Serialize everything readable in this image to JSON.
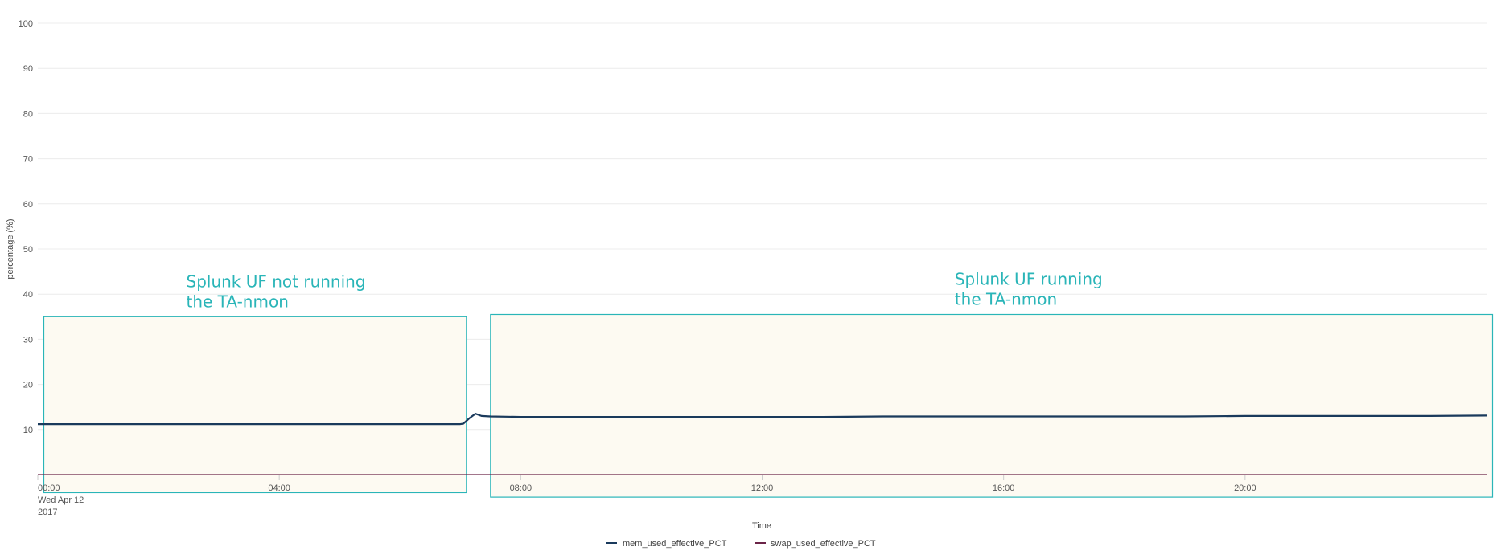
{
  "chart_data": {
    "type": "line",
    "title": "",
    "xlabel": "Time",
    "ylabel": "percentage (%)",
    "ylim": [
      0,
      100
    ],
    "y_ticks": [
      10,
      20,
      30,
      40,
      50,
      60,
      70,
      80,
      90,
      100
    ],
    "xlim_hours": [
      0,
      24
    ],
    "x_ticks": [
      {
        "hour": 0,
        "label": "00:00"
      },
      {
        "hour": 4,
        "label": "04:00"
      },
      {
        "hour": 8,
        "label": "08:00"
      },
      {
        "hour": 12,
        "label": "12:00"
      },
      {
        "hour": 16,
        "label": "16:00"
      },
      {
        "hour": 20,
        "label": "20:00"
      }
    ],
    "x_date_label": [
      "Wed Apr 12",
      "2017"
    ],
    "grid": true,
    "legend_position": "bottom",
    "series": [
      {
        "name": "mem_used_effective_PCT",
        "color": "#1a3a5c",
        "x": [
          0,
          1,
          2,
          3,
          4,
          5,
          6,
          7,
          7.05,
          7.15,
          7.25,
          7.35,
          7.5,
          8,
          9,
          10,
          11,
          12,
          13,
          14,
          15,
          16,
          17,
          18,
          19,
          20,
          21,
          22,
          23,
          24
        ],
        "y": [
          11.2,
          11.2,
          11.2,
          11.2,
          11.2,
          11.2,
          11.2,
          11.2,
          11.3,
          12.5,
          13.5,
          13.0,
          12.9,
          12.8,
          12.8,
          12.8,
          12.8,
          12.8,
          12.8,
          12.9,
          12.9,
          12.9,
          12.9,
          12.9,
          12.9,
          13.0,
          13.0,
          13.0,
          13.0,
          13.1
        ]
      },
      {
        "name": "swap_used_effective_PCT",
        "color": "#6b2448",
        "x": [
          0,
          24
        ],
        "y": [
          0,
          0
        ]
      }
    ],
    "annotations": [
      {
        "text": [
          "Splunk UF not running",
          "the TA-nmon"
        ],
        "color": "#2ab5b8",
        "x_range_hours": [
          0.1,
          7.1
        ],
        "y_range": [
          -4,
          35
        ]
      },
      {
        "text": [
          "Splunk UF running",
          "the TA-nmon"
        ],
        "color": "#2ab5b8",
        "x_range_hours": [
          7.5,
          24.1
        ],
        "y_range": [
          -5,
          35.5
        ]
      }
    ],
    "annotation_fill": "#fdfaf2"
  }
}
